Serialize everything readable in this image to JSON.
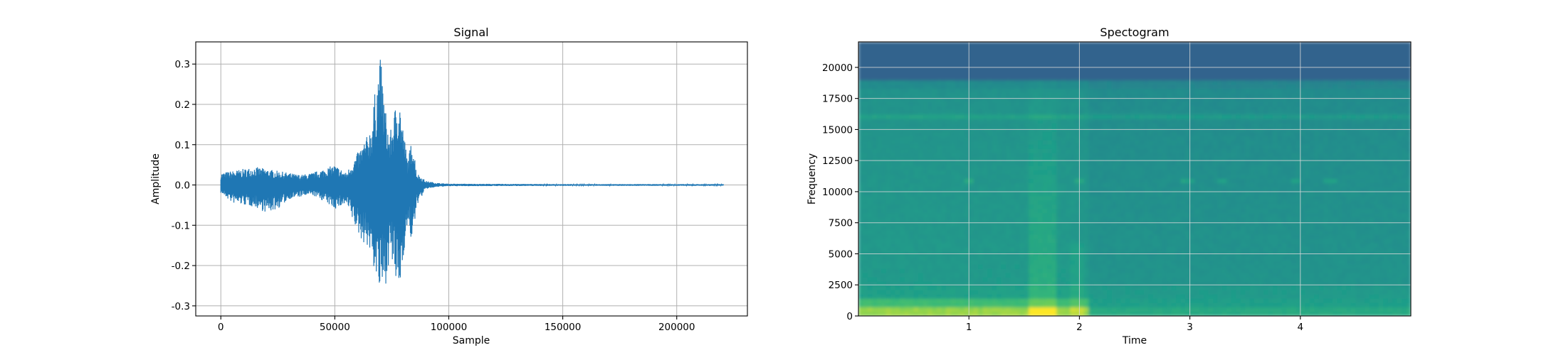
{
  "chart_data": [
    {
      "type": "line",
      "title": "Signal",
      "xlabel": "Sample",
      "ylabel": "Amplitude",
      "xlim": [
        -11000,
        231000
      ],
      "ylim": [
        -0.325,
        0.355
      ],
      "xticks": [
        0,
        50000,
        100000,
        150000,
        200000
      ],
      "yticks": [
        -0.3,
        -0.2,
        -0.1,
        0.0,
        0.1,
        0.2,
        0.3
      ],
      "grid": true,
      "color": "#1f77b4",
      "envelope": [
        [
          0,
          0.03,
          -0.02
        ],
        [
          5000,
          0.035,
          -0.045
        ],
        [
          10000,
          0.04,
          -0.05
        ],
        [
          15000,
          0.045,
          -0.055
        ],
        [
          20000,
          0.04,
          -0.07
        ],
        [
          25000,
          0.035,
          -0.06
        ],
        [
          30000,
          0.03,
          -0.035
        ],
        [
          35000,
          0.025,
          -0.03
        ],
        [
          40000,
          0.03,
          -0.025
        ],
        [
          45000,
          0.04,
          -0.04
        ],
        [
          50000,
          0.05,
          -0.06
        ],
        [
          55000,
          0.03,
          -0.05
        ],
        [
          60000,
          0.08,
          -0.12
        ],
        [
          62000,
          0.1,
          -0.14
        ],
        [
          64000,
          0.12,
          -0.15
        ],
        [
          66000,
          0.15,
          -0.18
        ],
        [
          68000,
          0.25,
          -0.23
        ],
        [
          70000,
          0.32,
          -0.28
        ],
        [
          72000,
          0.2,
          -0.26
        ],
        [
          74000,
          0.12,
          -0.18
        ],
        [
          76000,
          0.18,
          -0.22
        ],
        [
          78000,
          0.24,
          -0.29
        ],
        [
          80000,
          0.14,
          -0.18
        ],
        [
          82000,
          0.06,
          -0.1
        ],
        [
          84000,
          0.12,
          -0.15
        ],
        [
          86000,
          0.03,
          -0.05
        ],
        [
          90000,
          0.01,
          -0.01
        ],
        [
          95000,
          0.005,
          -0.005
        ],
        [
          100000,
          0.003,
          -0.003
        ],
        [
          150000,
          0.002,
          -0.002
        ],
        [
          220500,
          0.002,
          -0.002
        ]
      ]
    },
    {
      "type": "heatmap",
      "title": "Spectogram",
      "xlabel": "Time",
      "ylabel": "Frequency",
      "xlim": [
        0.0,
        5.0
      ],
      "ylim": [
        0,
        22050
      ],
      "xticks": [
        1,
        2,
        3,
        4
      ],
      "yticks": [
        0,
        2500,
        5000,
        7500,
        10000,
        12500,
        15000,
        17500,
        20000
      ],
      "grid": true,
      "colormap": "viridis"
    }
  ]
}
